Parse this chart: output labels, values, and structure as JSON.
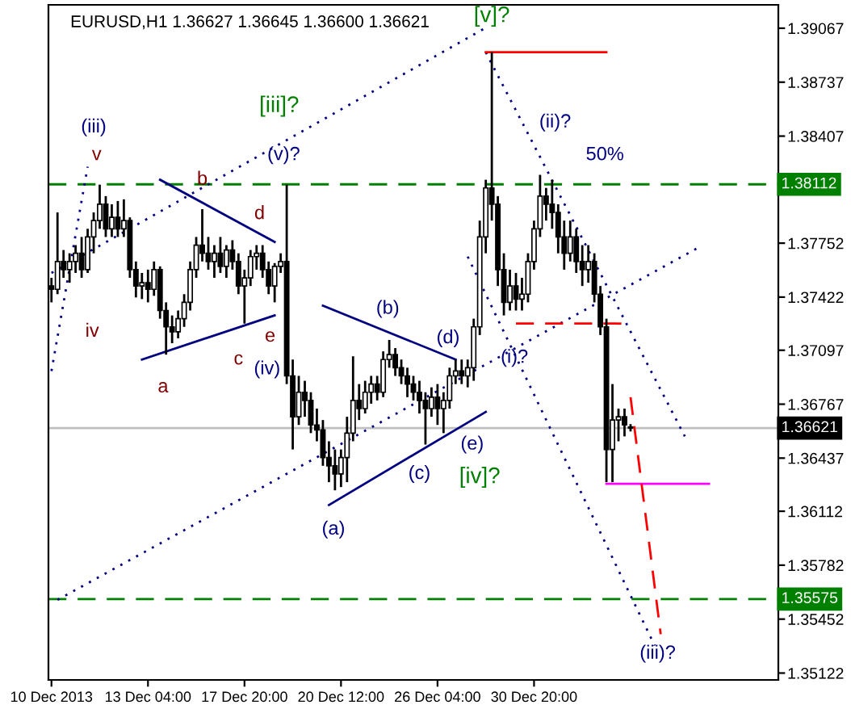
{
  "chart_data": {
    "type": "candlestick",
    "title": "EURUSD,H1 1.36627 1.36645 1.36600 1.36621",
    "categories": [
      "10 Dec 2013",
      null,
      null,
      null,
      null,
      null,
      null,
      null,
      null,
      null,
      null,
      null,
      null,
      null,
      null,
      null,
      "13 Dec 04:00",
      null,
      null,
      null,
      null,
      null,
      null,
      null,
      null,
      null,
      null,
      null,
      null,
      null,
      null,
      null,
      "17 Dec 20:00",
      null,
      null,
      null,
      null,
      null,
      null,
      null,
      null,
      null,
      null,
      null,
      null,
      null,
      null,
      null,
      "20 Dec 12:00",
      null,
      null,
      null,
      null,
      null,
      null,
      null,
      null,
      null,
      null,
      null,
      null,
      null,
      null,
      null,
      "26 Dec 04:00",
      null,
      null,
      null,
      null,
      null,
      null,
      null,
      null,
      null,
      null,
      null,
      null,
      null,
      null,
      null,
      "30 Dec 20:00",
      null,
      null,
      null,
      null,
      null,
      null,
      null,
      null,
      null,
      null,
      null,
      null,
      null,
      null,
      null,
      null,
      null,
      null,
      null,
      null,
      null,
      null,
      null,
      null,
      null,
      null,
      null,
      null,
      null,
      null,
      null,
      null,
      null,
      null,
      null,
      null,
      null,
      null,
      null,
      null
    ],
    "ohlc": [
      [
        1.3749,
        1.3754,
        1.3739,
        1.3747
      ],
      [
        1.3747,
        1.3794,
        1.3744,
        1.3764
      ],
      [
        1.3764,
        1.3771,
        1.3754,
        1.3759
      ],
      [
        1.3759,
        1.3769,
        1.3751,
        1.3764
      ],
      [
        1.3764,
        1.3774,
        1.3757,
        1.3769
      ],
      [
        1.3769,
        1.3779,
        1.3754,
        1.3759
      ],
      [
        1.3759,
        1.3784,
        1.3757,
        1.3779
      ],
      [
        1.3779,
        1.3794,
        1.3769,
        1.3789
      ],
      [
        1.3789,
        1.3811,
        1.3784,
        1.3799
      ],
      [
        1.3799,
        1.3804,
        1.3779,
        1.3784
      ],
      [
        1.3784,
        1.3799,
        1.3779,
        1.3791
      ],
      [
        1.3791,
        1.3801,
        1.3779,
        1.3784
      ],
      [
        1.3784,
        1.3802,
        1.3779,
        1.3789
      ],
      [
        1.3789,
        1.3791,
        1.3754,
        1.3759
      ],
      [
        1.3759,
        1.3764,
        1.3742,
        1.3749
      ],
      [
        1.3749,
        1.3757,
        1.3741,
        1.3751
      ],
      [
        1.3751,
        1.3759,
        1.3739,
        1.3747
      ],
      [
        1.3747,
        1.3764,
        1.3743,
        1.3759
      ],
      [
        1.3759,
        1.3761,
        1.3729,
        1.3734
      ],
      [
        1.3734,
        1.3739,
        1.3707,
        1.3724
      ],
      [
        1.3724,
        1.3731,
        1.3714,
        1.3721
      ],
      [
        1.3721,
        1.3734,
        1.3717,
        1.3729
      ],
      [
        1.3729,
        1.3744,
        1.3724,
        1.3739
      ],
      [
        1.3739,
        1.3764,
        1.3734,
        1.3759
      ],
      [
        1.3759,
        1.3779,
        1.3754,
        1.3774
      ],
      [
        1.3774,
        1.3796,
        1.3764,
        1.3769
      ],
      [
        1.3769,
        1.3779,
        1.3759,
        1.3764
      ],
      [
        1.3764,
        1.3774,
        1.3754,
        1.3769
      ],
      [
        1.3769,
        1.3779,
        1.3757,
        1.3761
      ],
      [
        1.3761,
        1.3774,
        1.3754,
        1.3771
      ],
      [
        1.3771,
        1.3777,
        1.3759,
        1.3764
      ],
      [
        1.3764,
        1.3769,
        1.3744,
        1.3749
      ],
      [
        1.3749,
        1.3759,
        1.3726,
        1.3754
      ],
      [
        1.3754,
        1.3771,
        1.3749,
        1.3767
      ],
      [
        1.3767,
        1.3774,
        1.3759,
        1.3769
      ],
      [
        1.3769,
        1.3774,
        1.3754,
        1.3759
      ],
      [
        1.3759,
        1.3764,
        1.3744,
        1.3749
      ],
      [
        1.3749,
        1.3763,
        1.3739,
        1.3761
      ],
      [
        1.3761,
        1.3769,
        1.3757,
        1.3764
      ],
      [
        1.3764,
        1.3811,
        1.3689,
        1.3694
      ],
      [
        1.3694,
        1.3704,
        1.3649,
        1.3669
      ],
      [
        1.3669,
        1.3694,
        1.3664,
        1.3684
      ],
      [
        1.3684,
        1.3691,
        1.3669,
        1.3679
      ],
      [
        1.3679,
        1.3684,
        1.3659,
        1.3664
      ],
      [
        1.3664,
        1.3674,
        1.3654,
        1.3661
      ],
      [
        1.3661,
        1.3667,
        1.3639,
        1.3644
      ],
      [
        1.3644,
        1.3654,
        1.3629,
        1.3639
      ],
      [
        1.3639,
        1.3649,
        1.3624,
        1.3634
      ],
      [
        1.3634,
        1.3649,
        1.3626,
        1.3644
      ],
      [
        1.3644,
        1.3669,
        1.3629,
        1.3659
      ],
      [
        1.3659,
        1.3706,
        1.3654,
        1.3679
      ],
      [
        1.3679,
        1.3689,
        1.3667,
        1.3674
      ],
      [
        1.3674,
        1.3691,
        1.3671,
        1.3684
      ],
      [
        1.3684,
        1.3694,
        1.3677,
        1.3689
      ],
      [
        1.3689,
        1.3694,
        1.3679,
        1.3684
      ],
      [
        1.3684,
        1.3709,
        1.3681,
        1.3704
      ],
      [
        1.3704,
        1.3716,
        1.3699,
        1.3707
      ],
      [
        1.3707,
        1.3711,
        1.3694,
        1.3699
      ],
      [
        1.3699,
        1.3704,
        1.3689,
        1.3694
      ],
      [
        1.3694,
        1.3699,
        1.3681,
        1.3689
      ],
      [
        1.3689,
        1.3694,
        1.3679,
        1.3684
      ],
      [
        1.3684,
        1.3691,
        1.3671,
        1.3679
      ],
      [
        1.3679,
        1.3684,
        1.3652,
        1.3674
      ],
      [
        1.3674,
        1.3687,
        1.3669,
        1.3681
      ],
      [
        1.3681,
        1.3689,
        1.3664,
        1.3674
      ],
      [
        1.3674,
        1.3684,
        1.3659,
        1.3679
      ],
      [
        1.3679,
        1.3699,
        1.3674,
        1.3694
      ],
      [
        1.3694,
        1.3704,
        1.3689,
        1.3697
      ],
      [
        1.3697,
        1.3704,
        1.3689,
        1.3694
      ],
      [
        1.3694,
        1.3704,
        1.3687,
        1.3699
      ],
      [
        1.3699,
        1.3729,
        1.3691,
        1.3724
      ],
      [
        1.3724,
        1.3789,
        1.3719,
        1.3779
      ],
      [
        1.3779,
        1.3814,
        1.3769,
        1.3809
      ],
      [
        1.3809,
        1.3892,
        1.3789,
        1.3799
      ],
      [
        1.3799,
        1.3804,
        1.3749,
        1.3759
      ],
      [
        1.3759,
        1.3769,
        1.3731,
        1.3739
      ],
      [
        1.3739,
        1.3759,
        1.3734,
        1.3749
      ],
      [
        1.3749,
        1.3757,
        1.3734,
        1.3741
      ],
      [
        1.3741,
        1.3754,
        1.3734,
        1.3744
      ],
      [
        1.3744,
        1.3769,
        1.3739,
        1.3764
      ],
      [
        1.3764,
        1.3789,
        1.3759,
        1.3784
      ],
      [
        1.3784,
        1.3817,
        1.3779,
        1.3804
      ],
      [
        1.3804,
        1.3809,
        1.3789,
        1.3799
      ],
      [
        1.3799,
        1.3814,
        1.3784,
        1.3794
      ],
      [
        1.3794,
        1.3799,
        1.3769,
        1.3779
      ],
      [
        1.3779,
        1.3789,
        1.3759,
        1.3769
      ],
      [
        1.3769,
        1.3789,
        1.3764,
        1.3779
      ],
      [
        1.3779,
        1.3784,
        1.3757,
        1.3764
      ],
      [
        1.3764,
        1.3774,
        1.3749,
        1.3759
      ],
      [
        1.3759,
        1.3774,
        1.3751,
        1.3764
      ],
      [
        1.3764,
        1.3769,
        1.3739,
        1.3744
      ],
      [
        1.3744,
        1.3749,
        1.3719,
        1.3724
      ],
      [
        1.3724,
        1.3729,
        1.3629,
        1.3649
      ],
      [
        1.3649,
        1.3689,
        1.3629,
        1.3667
      ],
      [
        1.3667,
        1.3674,
        1.3654,
        1.3669
      ],
      [
        1.3669,
        1.3674,
        1.3657,
        1.3664
      ],
      [
        1.36627,
        1.36645,
        1.366,
        1.36621
      ],
      null,
      null,
      null,
      null,
      null,
      null,
      null,
      null,
      null,
      null,
      null,
      null,
      null,
      null,
      null,
      null,
      null,
      null,
      null,
      null,
      null,
      null,
      null,
      null
    ],
    "color": "#000000",
    "series": [
      {
        "type": "line",
        "color": "#000080",
        "line_style": "dotted",
        "values": [
          1.3757,
          null,
          null,
          null,
          null,
          null,
          null,
          null,
          null,
          null,
          null,
          null,
          null,
          null,
          null,
          null,
          null,
          null,
          null,
          null,
          null,
          null,
          null,
          null,
          null,
          null,
          null,
          null,
          null,
          null,
          null,
          null,
          null,
          null,
          null,
          null,
          null,
          null,
          null,
          null,
          null,
          null,
          null,
          null,
          null,
          null,
          null,
          null,
          null,
          null,
          null,
          null,
          null,
          null,
          null,
          null,
          null,
          null,
          null,
          null,
          null,
          null,
          null,
          null,
          null,
          null,
          null,
          null,
          null,
          null,
          null,
          null,
          1.3907,
          null,
          null,
          null,
          null,
          null,
          null,
          null,
          null,
          null,
          null,
          null,
          null,
          null,
          null,
          null,
          null,
          null,
          null,
          null,
          null,
          null,
          null,
          null,
          null,
          null,
          null,
          null,
          null,
          null,
          null,
          null,
          null,
          null,
          null,
          null,
          null,
          null,
          null,
          null,
          null,
          null,
          null,
          null,
          null,
          null,
          null,
          null,
          null
        ]
      },
      {
        "type": "line",
        "color": "#000080",
        "line_style": "dotted",
        "values": [
          null,
          1.3557,
          null,
          null,
          null,
          null,
          null,
          null,
          null,
          null,
          null,
          null,
          null,
          null,
          null,
          null,
          null,
          null,
          null,
          null,
          null,
          null,
          null,
          null,
          null,
          null,
          null,
          null,
          null,
          null,
          null,
          null,
          null,
          null,
          null,
          null,
          null,
          null,
          null,
          null,
          null,
          null,
          null,
          null,
          null,
          null,
          null,
          null,
          null,
          null,
          null,
          null,
          null,
          null,
          null,
          null,
          null,
          null,
          null,
          null,
          null,
          null,
          null,
          null,
          null,
          null,
          null,
          null,
          null,
          null,
          null,
          null,
          null,
          null,
          null,
          null,
          null,
          null,
          null,
          null,
          null,
          null,
          null,
          null,
          null,
          null,
          null,
          null,
          null,
          null,
          null,
          null,
          null,
          null,
          null,
          null,
          null,
          null,
          null,
          null,
          null,
          null,
          null,
          null,
          null,
          null,
          null,
          1.3772,
          null,
          null,
          null,
          null,
          null,
          null,
          null,
          null,
          null,
          null,
          null,
          null,
          null
        ]
      },
      {
        "type": "line",
        "color": "#000080",
        "line_style": "dotted",
        "values": [
          1.3697,
          null,
          null,
          null,
          null,
          null,
          1.3822,
          null,
          null,
          null,
          null,
          null,
          null,
          null,
          null,
          null,
          null,
          null,
          null,
          null,
          null,
          null,
          null,
          null,
          null,
          null,
          null,
          null,
          null,
          null,
          null,
          null,
          null,
          null,
          null,
          null,
          null,
          null,
          null,
          null,
          null,
          null,
          null,
          null,
          null,
          null,
          null,
          null,
          null,
          null,
          null,
          null,
          null,
          null,
          null,
          null,
          null,
          null,
          null,
          null,
          null,
          null,
          null,
          null,
          null,
          null,
          null,
          null,
          null,
          null,
          null,
          null,
          null,
          null,
          null,
          null,
          null,
          null,
          null,
          null,
          null,
          null,
          null,
          null,
          null,
          null,
          null,
          null,
          null,
          null,
          null,
          null,
          null,
          null,
          null,
          null,
          null,
          null,
          null,
          null,
          null,
          null,
          null,
          null,
          null,
          null,
          null,
          null,
          null,
          null,
          null,
          null,
          null,
          null,
          null,
          null,
          null,
          null,
          null,
          null,
          null
        ]
      },
      {
        "type": "line",
        "color": "#000080",
        "line_style": "dotted",
        "values": [
          null,
          null,
          null,
          null,
          null,
          null,
          null,
          null,
          null,
          null,
          null,
          null,
          null,
          null,
          null,
          null,
          null,
          null,
          null,
          null,
          null,
          null,
          null,
          null,
          null,
          null,
          null,
          null,
          null,
          null,
          null,
          null,
          null,
          null,
          null,
          null,
          null,
          null,
          null,
          null,
          null,
          null,
          null,
          null,
          null,
          null,
          null,
          null,
          null,
          null,
          null,
          null,
          null,
          null,
          null,
          null,
          null,
          null,
          null,
          null,
          null,
          null,
          null,
          null,
          null,
          null,
          null,
          null,
          null,
          null,
          null,
          null,
          1.3892,
          null,
          null,
          null,
          null,
          null,
          null,
          null,
          null,
          null,
          null,
          null,
          null,
          null,
          null,
          null,
          null,
          null,
          null,
          null,
          null,
          null,
          null,
          null,
          null,
          null,
          null,
          null,
          null,
          null,
          null,
          null,
          null,
          1.3657,
          null,
          null,
          null,
          null,
          null,
          null,
          null,
          null,
          null,
          null,
          null,
          null,
          null,
          null,
          null
        ]
      },
      {
        "type": "line",
        "color": "#000080",
        "line_style": "dotted",
        "values": [
          null,
          null,
          null,
          null,
          null,
          null,
          null,
          null,
          null,
          null,
          null,
          null,
          null,
          null,
          null,
          null,
          null,
          null,
          null,
          null,
          null,
          null,
          null,
          null,
          null,
          null,
          null,
          null,
          null,
          null,
          null,
          null,
          null,
          null,
          null,
          null,
          null,
          null,
          null,
          null,
          null,
          null,
          null,
          null,
          null,
          null,
          null,
          null,
          null,
          null,
          null,
          null,
          null,
          null,
          null,
          null,
          null,
          null,
          null,
          null,
          null,
          null,
          null,
          null,
          null,
          null,
          null,
          null,
          null,
          1.3767,
          null,
          null,
          null,
          null,
          null,
          null,
          null,
          null,
          null,
          null,
          null,
          null,
          null,
          null,
          null,
          null,
          null,
          null,
          null,
          null,
          null,
          null,
          null,
          null,
          null,
          null,
          null,
          null,
          null,
          null,
          1.3529,
          null,
          null,
          null,
          null,
          null,
          null,
          null,
          null,
          null,
          null,
          null,
          null,
          null,
          null,
          null,
          null,
          null,
          null,
          null,
          null
        ]
      },
      {
        "type": "line",
        "color": "#000080",
        "line_style": "solid",
        "values": [
          null,
          null,
          null,
          null,
          null,
          null,
          null,
          null,
          null,
          null,
          null,
          null,
          null,
          null,
          null,
          null,
          null,
          null,
          1.3814,
          null,
          null,
          null,
          null,
          null,
          null,
          null,
          null,
          null,
          null,
          null,
          null,
          null,
          null,
          null,
          null,
          null,
          null,
          1.3776,
          null,
          null,
          null,
          null,
          null,
          null,
          null,
          null,
          null,
          null,
          null,
          null,
          null,
          null,
          null,
          null,
          null,
          null,
          null,
          null,
          null,
          null,
          null,
          null,
          null,
          null,
          null,
          null,
          null,
          null,
          null,
          null,
          null,
          null,
          null,
          null,
          null,
          null,
          null,
          null,
          null,
          null,
          null,
          null,
          null,
          null,
          null,
          null,
          null,
          null,
          null,
          null,
          null,
          null,
          null,
          null,
          null,
          null,
          null,
          null,
          null,
          null,
          null,
          null,
          null,
          null,
          null,
          null,
          null,
          null,
          null,
          null,
          null,
          null,
          null,
          null,
          null,
          null,
          null,
          null,
          null,
          null,
          null
        ]
      },
      {
        "type": "line",
        "color": "#000080",
        "line_style": "solid",
        "values": [
          null,
          null,
          null,
          null,
          null,
          null,
          null,
          null,
          null,
          null,
          null,
          null,
          null,
          null,
          null,
          1.3704,
          null,
          null,
          null,
          null,
          null,
          null,
          null,
          null,
          null,
          null,
          null,
          null,
          null,
          null,
          null,
          null,
          null,
          null,
          null,
          null,
          null,
          1.3731,
          null,
          null,
          null,
          null,
          null,
          null,
          null,
          null,
          null,
          null,
          null,
          null,
          null,
          null,
          null,
          null,
          null,
          null,
          null,
          null,
          null,
          null,
          null,
          null,
          null,
          null,
          null,
          null,
          null,
          null,
          null,
          null,
          null,
          null,
          null,
          null,
          null,
          null,
          null,
          null,
          null,
          null,
          null,
          null,
          null,
          null,
          null,
          null,
          null,
          null,
          null,
          null,
          null,
          null,
          null,
          null,
          null,
          null,
          null,
          null,
          null,
          null,
          null,
          null,
          null,
          null,
          null,
          null,
          null,
          null,
          null,
          null,
          null,
          null,
          null,
          null,
          null,
          null,
          null,
          null,
          null,
          null,
          null
        ]
      },
      {
        "type": "line",
        "color": "#000080",
        "line_style": "solid",
        "values": [
          null,
          null,
          null,
          null,
          null,
          null,
          null,
          null,
          null,
          null,
          null,
          null,
          null,
          null,
          null,
          null,
          null,
          null,
          null,
          null,
          null,
          null,
          null,
          null,
          null,
          null,
          null,
          null,
          null,
          null,
          null,
          null,
          null,
          null,
          null,
          null,
          null,
          null,
          null,
          null,
          null,
          null,
          null,
          null,
          null,
          1.3737,
          null,
          null,
          null,
          null,
          null,
          null,
          null,
          null,
          null,
          null,
          null,
          null,
          null,
          null,
          null,
          null,
          null,
          null,
          null,
          null,
          null,
          1.3704,
          null,
          null,
          null,
          null,
          null,
          null,
          null,
          null,
          null,
          null,
          null,
          null,
          null,
          null,
          null,
          null,
          null,
          null,
          null,
          null,
          null,
          null,
          null,
          null,
          null,
          null,
          null,
          null,
          null,
          null,
          null,
          null,
          null,
          null,
          null,
          null,
          null,
          null,
          null,
          null,
          null,
          null,
          null,
          null,
          null,
          null,
          null,
          null,
          null,
          null,
          null,
          null,
          null
        ]
      },
      {
        "type": "line",
        "color": "#000080",
        "line_style": "solid",
        "values": [
          null,
          null,
          null,
          null,
          null,
          null,
          null,
          null,
          null,
          null,
          null,
          null,
          null,
          null,
          null,
          null,
          null,
          null,
          null,
          null,
          null,
          null,
          null,
          null,
          null,
          null,
          null,
          null,
          null,
          null,
          null,
          null,
          null,
          null,
          null,
          null,
          null,
          null,
          null,
          null,
          null,
          null,
          null,
          null,
          null,
          null,
          1.3615,
          null,
          null,
          null,
          null,
          null,
          null,
          null,
          null,
          null,
          null,
          null,
          null,
          null,
          null,
          null,
          null,
          null,
          null,
          null,
          null,
          null,
          null,
          null,
          null,
          null,
          1.3672,
          null,
          null,
          null,
          null,
          null,
          null,
          null,
          null,
          null,
          null,
          null,
          null,
          null,
          null,
          null,
          null,
          null,
          null,
          null,
          null,
          null,
          null,
          null,
          null,
          null,
          null,
          null,
          null,
          null,
          null,
          null,
          null,
          null,
          null,
          null,
          null,
          null,
          null,
          null,
          null,
          null,
          null,
          null,
          null,
          null,
          null,
          null,
          null
        ]
      },
      {
        "type": "line",
        "color": "#ff0000",
        "line_style": "solid",
        "values": [
          null,
          null,
          null,
          null,
          null,
          null,
          null,
          null,
          null,
          null,
          null,
          null,
          null,
          null,
          null,
          null,
          null,
          null,
          null,
          null,
          null,
          null,
          null,
          null,
          null,
          null,
          null,
          null,
          null,
          null,
          null,
          null,
          null,
          null,
          null,
          null,
          null,
          null,
          null,
          null,
          null,
          null,
          null,
          null,
          null,
          null,
          null,
          null,
          null,
          null,
          null,
          null,
          null,
          null,
          null,
          null,
          null,
          null,
          null,
          null,
          null,
          null,
          null,
          null,
          null,
          null,
          null,
          null,
          null,
          null,
          null,
          null,
          1.3892,
          null,
          null,
          null,
          null,
          null,
          null,
          null,
          null,
          null,
          null,
          null,
          null,
          null,
          null,
          null,
          null,
          null,
          null,
          null,
          1.3892,
          null,
          null,
          null,
          null,
          null,
          null,
          null,
          null,
          null,
          null,
          null,
          null,
          null,
          null,
          null,
          null,
          null,
          null,
          null,
          null,
          null,
          null,
          null,
          null,
          null,
          null,
          null,
          null
        ]
      },
      {
        "type": "line",
        "color": "#ff0000",
        "line_style": "dashed",
        "values": [
          null,
          null,
          null,
          null,
          null,
          null,
          null,
          null,
          null,
          null,
          null,
          null,
          null,
          null,
          null,
          null,
          null,
          null,
          null,
          null,
          null,
          null,
          null,
          null,
          null,
          null,
          null,
          null,
          null,
          null,
          null,
          null,
          null,
          null,
          null,
          null,
          null,
          null,
          null,
          null,
          null,
          null,
          null,
          null,
          null,
          null,
          null,
          null,
          null,
          null,
          null,
          null,
          null,
          null,
          null,
          null,
          null,
          null,
          null,
          null,
          null,
          null,
          null,
          null,
          null,
          null,
          null,
          null,
          null,
          null,
          null,
          null,
          null,
          null,
          null,
          null,
          null,
          1.3726,
          null,
          null,
          null,
          null,
          null,
          null,
          null,
          null,
          null,
          null,
          null,
          null,
          null,
          null,
          null,
          null,
          null,
          1.3726,
          null,
          null,
          null,
          null,
          null,
          null,
          null,
          null,
          null,
          null,
          null,
          null,
          null,
          null,
          null,
          null,
          null,
          null,
          null,
          null,
          null,
          null,
          null,
          null,
          null
        ]
      },
      {
        "type": "line",
        "color": "#ff00ff",
        "line_style": "solid",
        "values": [
          null,
          null,
          null,
          null,
          null,
          null,
          null,
          null,
          null,
          null,
          null,
          null,
          null,
          null,
          null,
          null,
          null,
          null,
          null,
          null,
          null,
          null,
          null,
          null,
          null,
          null,
          null,
          null,
          null,
          null,
          null,
          null,
          null,
          null,
          null,
          null,
          null,
          null,
          null,
          null,
          null,
          null,
          null,
          null,
          null,
          null,
          null,
          null,
          null,
          null,
          null,
          null,
          null,
          null,
          null,
          null,
          null,
          null,
          null,
          null,
          null,
          null,
          null,
          null,
          null,
          null,
          null,
          null,
          null,
          null,
          null,
          null,
          null,
          null,
          null,
          null,
          null,
          null,
          null,
          null,
          null,
          null,
          null,
          null,
          null,
          null,
          null,
          null,
          null,
          null,
          null,
          null,
          1.3628,
          null,
          null,
          null,
          null,
          null,
          null,
          null,
          null,
          null,
          null,
          null,
          null,
          null,
          null,
          null,
          null,
          1.3628,
          null,
          null,
          null,
          null,
          null,
          null,
          null,
          null,
          null,
          null,
          null
        ]
      },
      {
        "type": "line",
        "color": "#ff0000",
        "line_style": "dashed",
        "values": [
          null,
          null,
          null,
          null,
          null,
          null,
          null,
          null,
          null,
          null,
          null,
          null,
          null,
          null,
          null,
          null,
          null,
          null,
          null,
          null,
          null,
          null,
          null,
          null,
          null,
          null,
          null,
          null,
          null,
          null,
          null,
          null,
          null,
          null,
          null,
          null,
          null,
          null,
          null,
          null,
          null,
          null,
          null,
          null,
          null,
          null,
          null,
          null,
          null,
          null,
          null,
          null,
          null,
          null,
          null,
          null,
          null,
          null,
          null,
          null,
          null,
          null,
          null,
          null,
          null,
          null,
          null,
          null,
          null,
          null,
          null,
          null,
          null,
          null,
          null,
          null,
          null,
          null,
          null,
          null,
          null,
          null,
          null,
          null,
          null,
          null,
          null,
          null,
          null,
          null,
          null,
          null,
          null,
          null,
          null,
          null,
          1.3681,
          null,
          null,
          null,
          null,
          1.3536,
          null,
          null,
          null,
          null,
          null,
          null,
          null,
          null,
          null,
          null,
          null,
          null,
          null,
          null,
          null,
          null,
          null,
          null,
          null
        ]
      }
    ],
    "ylim": [
      1.3508,
      1.3921
    ],
    "yticks": [
      1.39067,
      1.38737,
      1.38407,
      1.37752,
      1.37422,
      1.37097,
      1.36767,
      1.36437,
      1.36112,
      1.35782,
      1.35452,
      1.35122
    ],
    "ref_lines": [
      {
        "axis": "y",
        "value": 1.38112,
        "label": "1.38112",
        "color": "#008000",
        "line_style": "dashed"
      },
      {
        "axis": "y",
        "value": 1.35575,
        "label": "1.35575",
        "color": "#008000",
        "line_style": "dashed"
      },
      {
        "axis": "y",
        "value": 1.36621,
        "label": "1.36621",
        "color": "#c0c0c0",
        "line_style": "solid"
      }
    ],
    "annotations": [
      "(iii)",
      "v",
      "iv",
      "a",
      "b",
      "c",
      "d",
      "e",
      "[iii]?",
      "(v)?",
      "(iv)",
      "(a)",
      "(b)",
      "(c)",
      "(d)",
      "(e)",
      "[iv]?",
      "[v]?",
      "(ii)?",
      "50%",
      "(i)?",
      "(iii)?"
    ]
  }
}
